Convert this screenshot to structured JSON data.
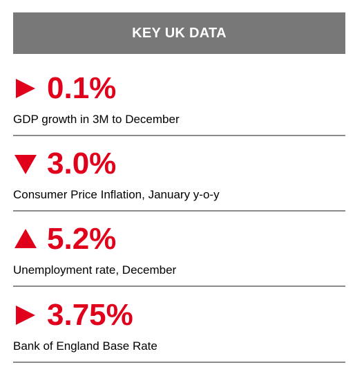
{
  "header": {
    "title": "KEY UK DATA"
  },
  "colors": {
    "header_bg": "#787878",
    "accent": "#e0001b"
  },
  "stats": [
    {
      "icon": "right-triangle-icon",
      "value": "0.1%",
      "label": "GDP growth in 3M to December"
    },
    {
      "icon": "down-triangle-icon",
      "value": "3.0%",
      "label": "Consumer Price Inflation, January y-o-y"
    },
    {
      "icon": "up-triangle-icon",
      "value": "5.2%",
      "label": "Unemployment rate, December"
    },
    {
      "icon": "right-triangle-icon",
      "value": "3.75%",
      "label": "Bank of England Base Rate"
    }
  ]
}
